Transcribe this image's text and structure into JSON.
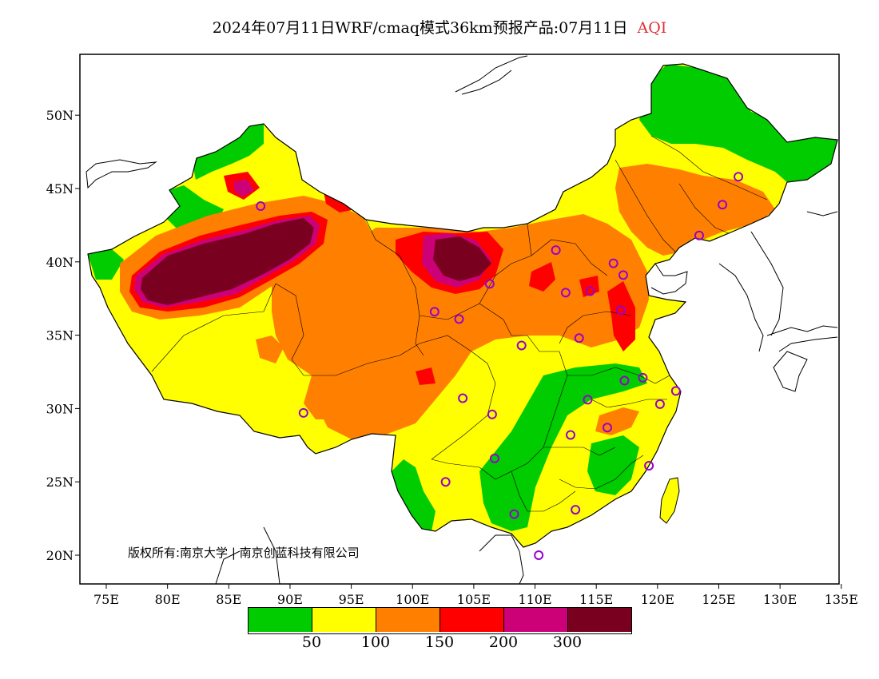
{
  "title": {
    "main": "2024年07月11日WRF/cmaq模式36km预报产品:07月11日",
    "variable": "AQI"
  },
  "copyright": "版权所有:南京大学 | 南京创蓝科技有限公司",
  "axes": {
    "lon_labels": [
      "75E",
      "80E",
      "85E",
      "90E",
      "95E",
      "100E",
      "105E",
      "110E",
      "115E",
      "120E",
      "125E",
      "130E",
      "135E"
    ],
    "lat_labels": [
      "20N",
      "25N",
      "30N",
      "35N",
      "40N",
      "45N",
      "50N"
    ]
  },
  "legend": {
    "colors": [
      "#00cc00",
      "#ffff00",
      "#ff8000",
      "#ff0000",
      "#cc0077",
      "#7a0020"
    ],
    "thresholds": [
      "50",
      "100",
      "150",
      "200",
      "300"
    ]
  },
  "colors": {
    "good": "#00cc00",
    "moderate": "#ffff00",
    "unhealthy_sensitive": "#ff8000",
    "unhealthy": "#ff0000",
    "very_unhealthy": "#cc0077",
    "hazardous": "#7a0020",
    "station_marker": "#9900cc"
  },
  "stations": [
    {
      "lon": 87.6,
      "lat": 43.8
    },
    {
      "lon": 126.6,
      "lat": 45.8
    },
    {
      "lon": 125.3,
      "lat": 43.9
    },
    {
      "lon": 123.4,
      "lat": 41.8
    },
    {
      "lon": 111.7,
      "lat": 40.8
    },
    {
      "lon": 116.4,
      "lat": 39.9
    },
    {
      "lon": 117.2,
      "lat": 39.1
    },
    {
      "lon": 106.3,
      "lat": 38.5
    },
    {
      "lon": 112.5,
      "lat": 37.9
    },
    {
      "lon": 114.5,
      "lat": 38.0
    },
    {
      "lon": 117.0,
      "lat": 36.7
    },
    {
      "lon": 101.8,
      "lat": 36.6
    },
    {
      "lon": 103.8,
      "lat": 36.1
    },
    {
      "lon": 108.9,
      "lat": 34.3
    },
    {
      "lon": 113.6,
      "lat": 34.8
    },
    {
      "lon": 117.3,
      "lat": 31.9
    },
    {
      "lon": 118.8,
      "lat": 32.1
    },
    {
      "lon": 121.5,
      "lat": 31.2
    },
    {
      "lon": 120.2,
      "lat": 30.3
    },
    {
      "lon": 114.3,
      "lat": 30.6
    },
    {
      "lon": 104.1,
      "lat": 30.7
    },
    {
      "lon": 106.5,
      "lat": 29.6
    },
    {
      "lon": 91.1,
      "lat": 29.7
    },
    {
      "lon": 112.9,
      "lat": 28.2
    },
    {
      "lon": 115.9,
      "lat": 28.7
    },
    {
      "lon": 106.7,
      "lat": 26.6
    },
    {
      "lon": 119.3,
      "lat": 26.1
    },
    {
      "lon": 102.7,
      "lat": 25.0
    },
    {
      "lon": 113.3,
      "lat": 23.1
    },
    {
      "lon": 108.3,
      "lat": 22.8
    },
    {
      "lon": 110.3,
      "lat": 20.0
    }
  ]
}
